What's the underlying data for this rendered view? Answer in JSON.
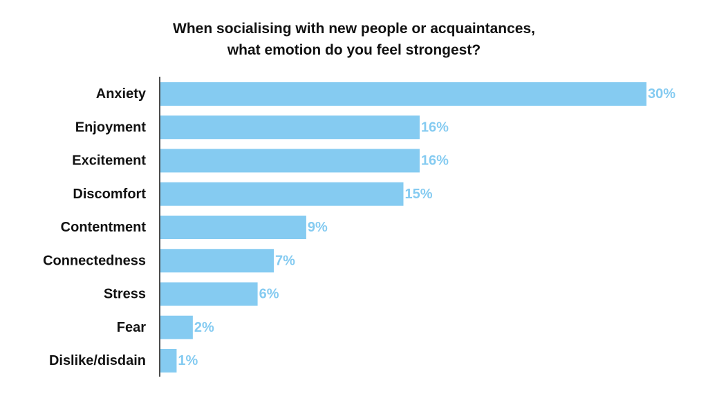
{
  "chart_data": {
    "type": "bar",
    "orientation": "horizontal",
    "title": [
      "When socialising with new people or acquaintances,",
      "what emotion do you feel strongest?"
    ],
    "categories": [
      "Anxiety",
      "Enjoyment",
      "Excitement",
      "Discomfort",
      "Contentment",
      "Connectedness",
      "Stress",
      "Fear",
      "Dislike/disdain"
    ],
    "values": [
      30,
      16,
      16,
      15,
      9,
      7,
      6,
      2,
      1
    ],
    "value_labels": [
      "30%",
      "16%",
      "16%",
      "15%",
      "9%",
      "7%",
      "6%",
      "2%",
      "1%"
    ],
    "unit": "%",
    "xlim": [
      0,
      30
    ],
    "grid": false,
    "legend": "none",
    "bar_color": "#85cbf1",
    "label_color": "#85cbf1"
  }
}
